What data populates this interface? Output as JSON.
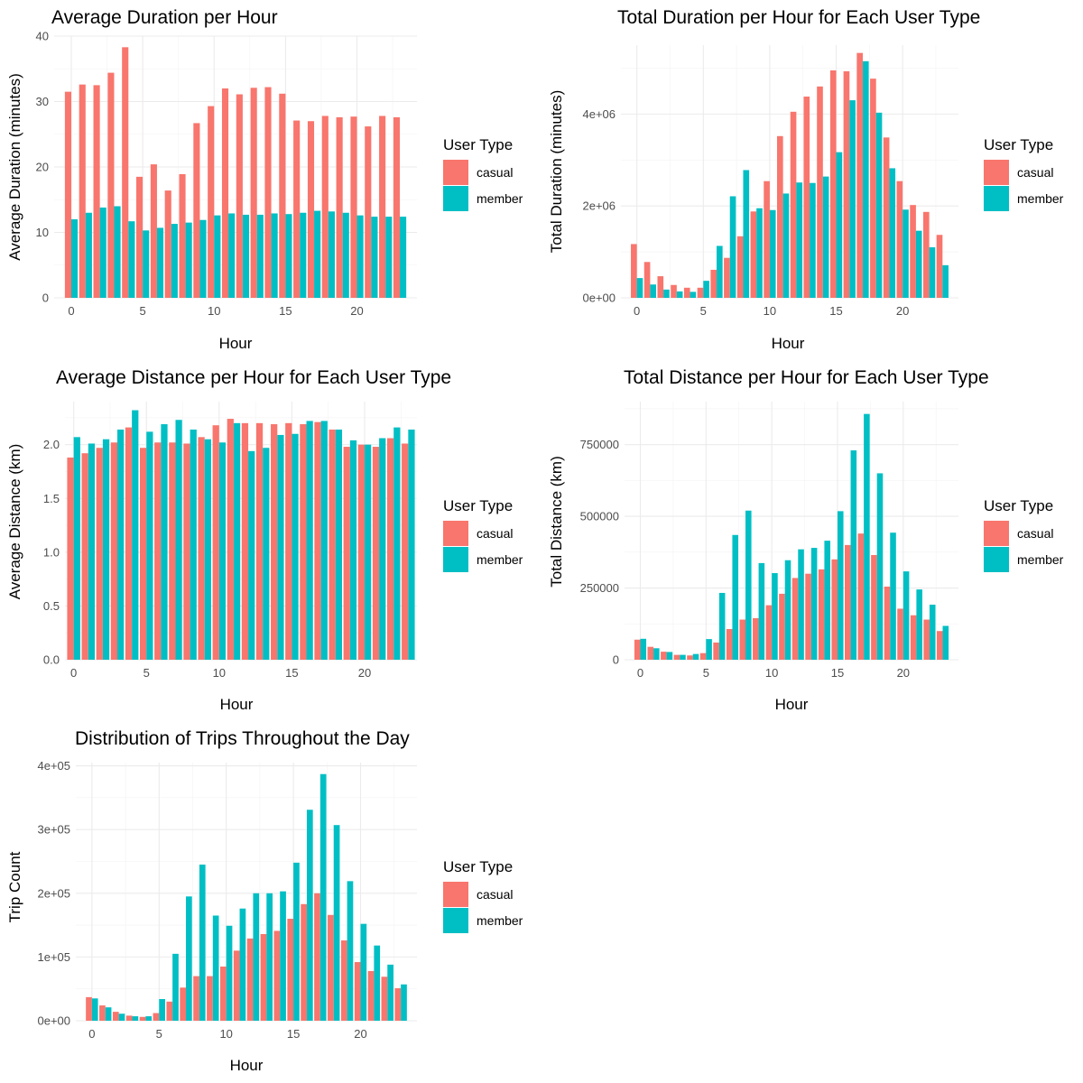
{
  "legend": {
    "title": "User Type",
    "entries": [
      {
        "name": "casual",
        "color": "#F8766D"
      },
      {
        "name": "member",
        "color": "#00BFC4"
      }
    ]
  },
  "chart_data": [
    {
      "id": "avg-duration",
      "type": "bar",
      "title": "Average Duration per Hour",
      "xlabel": "Hour",
      "ylabel": "Average Duration (minutes)",
      "x": [
        0,
        1,
        2,
        3,
        4,
        5,
        6,
        7,
        8,
        9,
        10,
        11,
        12,
        13,
        14,
        15,
        16,
        17,
        18,
        19,
        20,
        21,
        22,
        23
      ],
      "xlim": [
        -1.2,
        24.2
      ],
      "xticks": [
        0,
        5,
        10,
        15,
        20
      ],
      "ylim": [
        0,
        40
      ],
      "yticks": [
        0,
        10,
        20,
        30,
        40
      ],
      "ytick_labels": [
        "0",
        "10",
        "20",
        "30",
        "40"
      ],
      "grid": true,
      "legend_position": "right",
      "series": [
        {
          "name": "casual",
          "color": "#F8766D",
          "values": [
            31.5,
            32.6,
            32.5,
            34.4,
            38.3,
            18.5,
            20.4,
            16.4,
            18.9,
            26.7,
            29.3,
            32.0,
            31.1,
            32.1,
            32.2,
            31.2,
            27.1,
            27.0,
            27.8,
            27.6,
            27.7,
            26.2,
            27.8,
            27.6
          ]
        },
        {
          "name": "member",
          "color": "#00BFC4",
          "values": [
            12.0,
            13.0,
            13.8,
            14.0,
            11.7,
            10.3,
            10.7,
            11.3,
            11.5,
            11.9,
            12.6,
            12.9,
            12.7,
            12.7,
            12.9,
            12.8,
            13.0,
            13.3,
            13.2,
            13.0,
            12.6,
            12.4,
            12.4,
            12.4
          ]
        }
      ]
    },
    {
      "id": "total-duration",
      "type": "bar",
      "title": "Total Duration per Hour for Each User Type",
      "xlabel": "Hour",
      "ylabel": "Total Duration (minutes)",
      "x": [
        0,
        1,
        2,
        3,
        4,
        5,
        6,
        7,
        8,
        9,
        10,
        11,
        12,
        13,
        14,
        15,
        16,
        17,
        18,
        19,
        20,
        21,
        22,
        23
      ],
      "xlim": [
        -1.2,
        24.2
      ],
      "xticks": [
        0,
        5,
        10,
        15,
        20
      ],
      "ylim": [
        0,
        5500000
      ],
      "yticks": [
        0,
        2000000,
        4000000
      ],
      "ytick_labels": [
        "0e+00",
        "2e+06",
        "4e+06"
      ],
      "grid": true,
      "legend_position": "right",
      "series": [
        {
          "name": "casual",
          "color": "#F8766D",
          "values": [
            1170000,
            780000,
            470000,
            280000,
            220000,
            220000,
            610000,
            870000,
            1340000,
            1880000,
            2540000,
            3520000,
            4050000,
            4380000,
            4600000,
            4950000,
            4930000,
            5330000,
            4770000,
            3490000,
            2540000,
            2020000,
            1870000,
            1370000
          ]
        },
        {
          "name": "member",
          "color": "#00BFC4",
          "values": [
            430000,
            290000,
            180000,
            140000,
            130000,
            370000,
            1130000,
            2210000,
            2780000,
            1950000,
            1910000,
            2270000,
            2510000,
            2500000,
            2640000,
            3170000,
            4300000,
            5150000,
            4030000,
            2820000,
            1920000,
            1460000,
            1100000,
            710000
          ]
        }
      ]
    },
    {
      "id": "avg-distance",
      "type": "bar",
      "title": "Average Distance per Hour for Each User Type",
      "xlabel": "Hour",
      "ylabel": "Average Distance (km)",
      "x": [
        0,
        1,
        2,
        3,
        4,
        5,
        6,
        7,
        8,
        9,
        10,
        11,
        12,
        13,
        14,
        15,
        16,
        17,
        18,
        19,
        20,
        21,
        22,
        23
      ],
      "xlim": [
        -0.6,
        23.6
      ],
      "xticks": [
        0,
        5,
        10,
        15,
        20
      ],
      "ylim": [
        0,
        2.4
      ],
      "yticks": [
        0,
        0.5,
        1.0,
        1.5,
        2.0
      ],
      "ytick_labels": [
        "0.0",
        "0.5",
        "1.0",
        "1.5",
        "2.0"
      ],
      "grid": true,
      "legend_position": "right",
      "series": [
        {
          "name": "casual",
          "color": "#F8766D",
          "values": [
            1.88,
            1.92,
            1.97,
            2.02,
            2.16,
            1.97,
            2.02,
            2.02,
            2.01,
            2.07,
            2.18,
            2.24,
            2.2,
            2.2,
            2.19,
            2.2,
            2.19,
            2.21,
            2.14,
            1.98,
            2.0,
            1.98,
            2.06,
            2.01
          ]
        },
        {
          "name": "member",
          "color": "#00BFC4",
          "values": [
            2.07,
            2.01,
            2.05,
            2.14,
            2.32,
            2.12,
            2.19,
            2.23,
            2.14,
            2.05,
            2.02,
            2.2,
            1.94,
            1.97,
            2.09,
            2.1,
            2.22,
            2.22,
            2.14,
            2.04,
            2.0,
            2.06,
            2.16,
            2.14
          ]
        }
      ]
    },
    {
      "id": "total-distance",
      "type": "bar",
      "title": "Total Distance per Hour for Each User Type",
      "xlabel": "Hour",
      "ylabel": "Total Distance (km)",
      "x": [
        0,
        1,
        2,
        3,
        4,
        5,
        6,
        7,
        8,
        9,
        10,
        11,
        12,
        13,
        14,
        15,
        16,
        17,
        18,
        19,
        20,
        21,
        22,
        23
      ],
      "xlim": [
        -1.2,
        24.2
      ],
      "xticks": [
        0,
        5,
        10,
        15,
        20
      ],
      "ylim": [
        0,
        900000
      ],
      "yticks": [
        0,
        250000,
        500000,
        750000
      ],
      "ytick_labels": [
        "0",
        "250000",
        "500000",
        "750000"
      ],
      "grid": true,
      "legend_position": "right",
      "series": [
        {
          "name": "casual",
          "color": "#F8766D",
          "values": [
            70000,
            45000,
            28000,
            17000,
            15000,
            23000,
            60000,
            107000,
            140000,
            145000,
            190000,
            230000,
            285000,
            300000,
            315000,
            350000,
            400000,
            440000,
            365000,
            255000,
            178000,
            155000,
            140000,
            100000
          ]
        },
        {
          "name": "member",
          "color": "#00BFC4",
          "values": [
            73000,
            40000,
            27000,
            17000,
            20000,
            72000,
            233000,
            435000,
            520000,
            337000,
            302000,
            347000,
            385000,
            390000,
            415000,
            518000,
            730000,
            857000,
            650000,
            443000,
            308000,
            245000,
            192000,
            118000
          ]
        }
      ]
    },
    {
      "id": "trip-distribution",
      "type": "bar",
      "title": "Distribution of Trips Throughout the Day",
      "xlabel": "Hour",
      "ylabel": "Trip Count",
      "x": [
        0,
        1,
        2,
        3,
        4,
        5,
        6,
        7,
        8,
        9,
        10,
        11,
        12,
        13,
        14,
        15,
        16,
        17,
        18,
        19,
        20,
        21,
        22,
        23
      ],
      "xlim": [
        -1.2,
        24.2
      ],
      "xticks": [
        0,
        5,
        10,
        15,
        20
      ],
      "ylim": [
        0,
        405000
      ],
      "yticks": [
        0,
        100000,
        200000,
        300000,
        400000
      ],
      "ytick_labels": [
        "0e+00",
        "1e+05",
        "2e+05",
        "3e+05",
        "4e+05"
      ],
      "grid": true,
      "legend_position": "right",
      "series": [
        {
          "name": "casual",
          "color": "#F8766D",
          "values": [
            37000,
            24000,
            14000,
            8000,
            6000,
            12000,
            30000,
            52000,
            70000,
            70000,
            85000,
            110000,
            129000,
            136000,
            141000,
            160000,
            183000,
            200000,
            166000,
            126000,
            92000,
            78000,
            69000,
            51000
          ]
        },
        {
          "name": "member",
          "color": "#00BFC4",
          "values": [
            35000,
            21000,
            11000,
            7000,
            7000,
            34000,
            105000,
            195000,
            245000,
            165000,
            149000,
            176000,
            200000,
            200000,
            203000,
            248000,
            331000,
            387000,
            307000,
            219000,
            152000,
            118000,
            88000,
            57000
          ]
        }
      ]
    }
  ]
}
